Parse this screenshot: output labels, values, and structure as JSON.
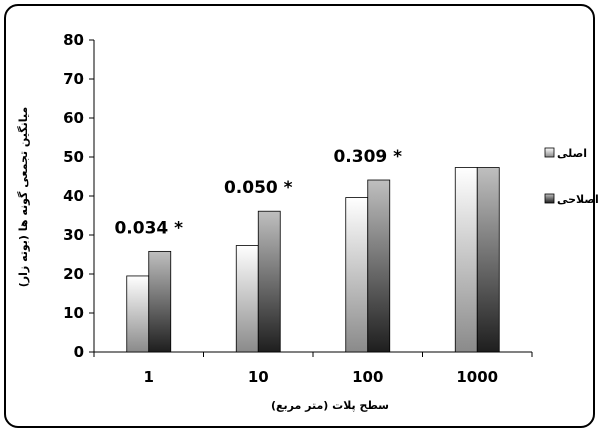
{
  "chart_data": {
    "type": "bar",
    "categories": [
      "1",
      "10",
      "100",
      "1000"
    ],
    "series": [
      {
        "name": "اصلی",
        "values": [
          19.5,
          27.3,
          39.6,
          47.3
        ],
        "color_light": "#ffffff",
        "color_dark": "#8a8a8a"
      },
      {
        "name": "اصلاحی",
        "values": [
          25.8,
          36.1,
          44.1,
          47.3
        ],
        "color_light": "#bfbfbf",
        "color_dark": "#1e1e1e"
      }
    ],
    "annotations": [
      "0.034 *",
      "0.050 *",
      "0.309 *",
      ""
    ],
    "xlabel": "سطح پلات (متر مربع)",
    "ylabel": "میانگین تجمعی گونه ها (بوته زار)",
    "ylim": [
      0,
      80
    ],
    "yticks": [
      0,
      10,
      20,
      30,
      40,
      50,
      60,
      70,
      80
    ],
    "legend_position": "right",
    "grid": false
  }
}
